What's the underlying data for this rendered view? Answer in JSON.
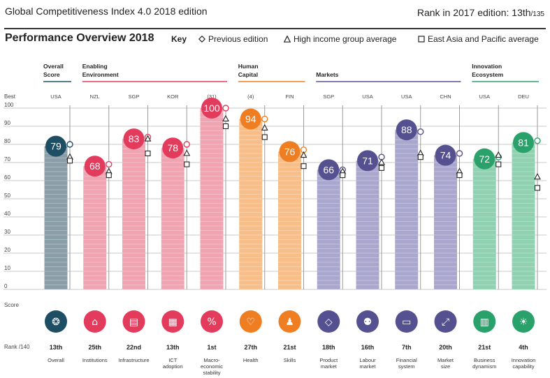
{
  "header": {
    "index_title": "Global Competitiveness Index 4.0 2018 edition",
    "rank_prefix": "Rank in 2017 edition: ",
    "rank_value": "13th",
    "rank_total": "/135"
  },
  "key": {
    "title": "Performance Overview 2018",
    "label": "Key",
    "items": [
      "Previous edition",
      "High income group average",
      "East Asia and Pacific average"
    ]
  },
  "chart_data": {
    "type": "bar",
    "ylabel_top": "Best",
    "ylabel_bottom": "Score",
    "rank_label": "Rank /140",
    "yticks": [
      0,
      10,
      20,
      30,
      40,
      50,
      60,
      70,
      80,
      90,
      100
    ],
    "ylim": [
      0,
      100
    ],
    "groups": [
      {
        "name": "Overall Score",
        "lines": [
          "Overall",
          "Score"
        ],
        "color": "#1d4e63",
        "start": 0,
        "end": 0
      },
      {
        "name": "Enabling Environment",
        "lines": [
          "Enabling",
          "Environment"
        ],
        "color": "#e23b5c",
        "start": 1,
        "end": 4
      },
      {
        "name": "Human Capital",
        "lines": [
          "Human",
          "Capital"
        ],
        "color": "#ef7d22",
        "start": 5,
        "end": 6
      },
      {
        "name": "Markets",
        "lines": [
          "Markets"
        ],
        "color": "#55508f",
        "start": 7,
        "end": 10
      },
      {
        "name": "Innovation Ecosystem",
        "lines": [
          "Innovation",
          "Ecosystem"
        ],
        "color": "#2aa06b",
        "start": 11,
        "end": 12
      }
    ],
    "pillars": [
      {
        "name": "Overall",
        "label_lines": [
          "Overall"
        ],
        "best": "USA",
        "value": 79,
        "prev": 80,
        "high": 73,
        "eap": 71,
        "rank": "13th",
        "color": "#1d4e63",
        "bar": "#8a9ea7",
        "icon": "medal-icon",
        "glyph": "❂"
      },
      {
        "name": "Institutions",
        "label_lines": [
          "Institutions"
        ],
        "best": "NZL",
        "value": 68,
        "prev": 69,
        "high": 65,
        "eap": 63,
        "rank": "25th",
        "color": "#e23b5c",
        "bar": "#f0a3b1",
        "icon": "institution-icon",
        "glyph": "⌂"
      },
      {
        "name": "Infrastructure",
        "label_lines": [
          "Infrastructure"
        ],
        "best": "SGP",
        "value": 83,
        "prev": 84,
        "high": 83,
        "eap": 75,
        "rank": "22nd",
        "color": "#e23b5c",
        "bar": "#f0a3b1",
        "icon": "train-icon",
        "glyph": "▤"
      },
      {
        "name": "ICT adoption",
        "label_lines": [
          "ICT",
          "adoption"
        ],
        "best": "KOR",
        "value": 78,
        "prev": 80,
        "high": 75,
        "eap": 69,
        "rank": "13th",
        "color": "#e23b5c",
        "bar": "#f0a3b1",
        "icon": "chip-icon",
        "glyph": "▦"
      },
      {
        "name": "Macroeconomic stability",
        "label_lines": [
          "Macro-",
          "economic",
          "stability"
        ],
        "best": "(31)",
        "value": 100,
        "prev": 100,
        "high": 94,
        "eap": 90,
        "rank": "1st",
        "color": "#e23b5c",
        "bar": "#f0a3b1",
        "icon": "percent-icon",
        "glyph": "%"
      },
      {
        "name": "Health",
        "label_lines": [
          "Health"
        ],
        "best": "(4)",
        "value": 94,
        "prev": 94,
        "high": 89,
        "eap": 84,
        "rank": "27th",
        "color": "#ef7d22",
        "bar": "#f7be8a",
        "icon": "heartbeat-icon",
        "glyph": "♡"
      },
      {
        "name": "Skills",
        "label_lines": [
          "Skills"
        ],
        "best": "FIN",
        "value": 76,
        "prev": 77,
        "high": 74,
        "eap": 68,
        "rank": "21st",
        "color": "#ef7d22",
        "bar": "#f7be8a",
        "icon": "graduate-icon",
        "glyph": "♟"
      },
      {
        "name": "Product market",
        "label_lines": [
          "Product",
          "market"
        ],
        "best": "SGP",
        "value": 66,
        "prev": 66,
        "high": 65,
        "eap": 63,
        "rank": "18th",
        "color": "#55508f",
        "bar": "#aaa7ce",
        "icon": "tag-icon",
        "glyph": "◇"
      },
      {
        "name": "Labour market",
        "label_lines": [
          "Labour",
          "market"
        ],
        "best": "USA",
        "value": 71,
        "prev": 73,
        "high": 70,
        "eap": 67,
        "rank": "16th",
        "color": "#55508f",
        "bar": "#aaa7ce",
        "icon": "people-icon",
        "glyph": "⚉"
      },
      {
        "name": "Financial system",
        "label_lines": [
          "Financial",
          "system"
        ],
        "best": "USA",
        "value": 88,
        "prev": 87,
        "high": 75,
        "eap": 73,
        "rank": "7th",
        "color": "#55508f",
        "bar": "#aaa7ce",
        "icon": "card-icon",
        "glyph": "▭"
      },
      {
        "name": "Market size",
        "label_lines": [
          "Market",
          "size"
        ],
        "best": "CHN",
        "value": 74,
        "prev": 75,
        "high": 65,
        "eap": 63,
        "rank": "20th",
        "color": "#55508f",
        "bar": "#aaa7ce",
        "icon": "expand-icon",
        "glyph": "⤢"
      },
      {
        "name": "Business dynamism",
        "label_lines": [
          "Business",
          "dynamism"
        ],
        "best": "USA",
        "value": 72,
        "prev": 73,
        "high": 74,
        "eap": 69,
        "rank": "21st",
        "color": "#2aa06b",
        "bar": "#8fd1b0",
        "icon": "document-icon",
        "glyph": "▥"
      },
      {
        "name": "Innovation capability",
        "label_lines": [
          "Innovation",
          "capability"
        ],
        "best": "DEU",
        "value": 81,
        "prev": 82,
        "high": 62,
        "eap": 56,
        "rank": "4th",
        "color": "#2aa06b",
        "bar": "#8fd1b0",
        "icon": "lightbulb-icon",
        "glyph": "☀"
      }
    ]
  }
}
